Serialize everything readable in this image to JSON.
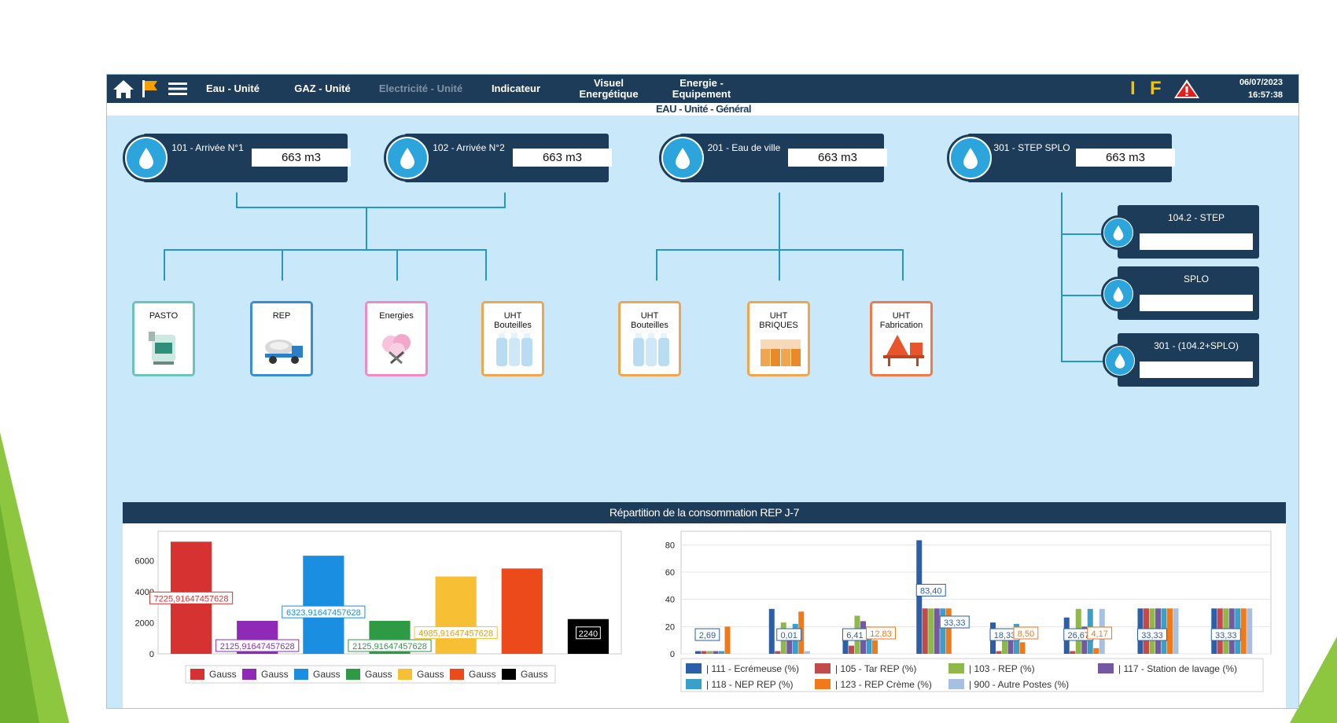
{
  "topbar": {
    "nav": [
      {
        "label": "Eau - Unité",
        "enabled": true
      },
      {
        "label": "GAZ - Unité",
        "enabled": true
      },
      {
        "label": "Electricité - Unité",
        "enabled": false
      },
      {
        "label": "Indicateur",
        "enabled": true
      },
      {
        "label": "Visuel\nEnergétique",
        "enabled": true
      },
      {
        "label": "Energie -\nEquipement",
        "enabled": true
      }
    ],
    "icons": [
      "home-icon",
      "flag-icon",
      "menu-icon",
      "warning-icon"
    ],
    "indicator_i": "I",
    "indicator_f": "F",
    "date": "06/07/2023",
    "time": "16:57:38"
  },
  "page_title": "EAU - Unité - Général",
  "meters": [
    {
      "label": "101 - Arrivée\nN°1",
      "value": "663 m3"
    },
    {
      "label": "102 - Arrivée\nN°2",
      "value": "663 m3"
    },
    {
      "label": "201 - Eau de\nville",
      "value": "663 m3"
    },
    {
      "label": "301 - STEP\nSPLO",
      "value": "663 m3"
    }
  ],
  "sub_meters": [
    {
      "label": "104.2 - STEP",
      "value": ""
    },
    {
      "label": "SPLO",
      "value": ""
    },
    {
      "label": "301 - (104.2+SPLO)",
      "value": ""
    }
  ],
  "units": [
    {
      "label": "PASTO",
      "border": "#6cc4b8",
      "icon": "pasteurizer-icon"
    },
    {
      "label": "REP",
      "border": "#3a8ed0",
      "icon": "tanker-truck-icon"
    },
    {
      "label": "Energies",
      "border": "#f08bbf",
      "icon": "energy-tools-icon"
    },
    {
      "label": "UHT\nBouteilles",
      "border": "#f0a650",
      "icon": "milk-bottles-icon"
    },
    {
      "label": "UHT\nBouteilles",
      "border": "#f0a650",
      "icon": "milk-bottles-icon"
    },
    {
      "label": "UHT\nBRIQUES",
      "border": "#f0a650",
      "icon": "milk-cartons-icon"
    },
    {
      "label": "UHT\nFabrication",
      "border": "#f07a4a",
      "icon": "factory-tanks-icon"
    }
  ],
  "chart_section_title": "Répartition de la consommation REP J-7",
  "chart_data": [
    {
      "type": "bar",
      "yticks": [
        0,
        2000,
        4000,
        6000
      ],
      "ylim": [
        0,
        7900
      ],
      "bars": [
        {
          "value": 7225.91647457628,
          "label": "7225,91647457628",
          "color": "#d73232"
        },
        {
          "value": 2125.91647457628,
          "label": "2125,91647457628",
          "color": "#8e2ab5"
        },
        {
          "value": 6323.91647457628,
          "label": "6323,91647457628",
          "color": "#1a8ee0"
        },
        {
          "value": 2125.91647457628,
          "label": "2125,91647457628",
          "color": "#2e9a44"
        },
        {
          "value": 4985.91647457628,
          "label": "4985,91647457628",
          "color": "#f7c034"
        },
        {
          "value": 5500,
          "label": "",
          "color": "#ec4a1a"
        },
        {
          "value": 2240,
          "label": "2240",
          "color": "#000000"
        }
      ],
      "legend": [
        {
          "name": "Gauss",
          "color": "#d73232"
        },
        {
          "name": "Gauss",
          "color": "#8e2ab5"
        },
        {
          "name": "Gauss",
          "color": "#1a8ee0"
        },
        {
          "name": "Gauss",
          "color": "#2e9a44"
        },
        {
          "name": "Gauss",
          "color": "#f7c034"
        },
        {
          "name": "Gauss",
          "color": "#ec4a1a"
        },
        {
          "name": "Gauss",
          "color": "#000000"
        }
      ]
    },
    {
      "type": "bar",
      "yticks": [
        0,
        20,
        40,
        60,
        80
      ],
      "ylim": [
        0,
        90
      ],
      "series": [
        {
          "name": "| 111 - Ecrémeuse (%)",
          "color": "#2b5fa8"
        },
        {
          "name": "| 105 - Tar REP (%)",
          "color": "#c24a4a"
        },
        {
          "name": "| 103 - REP (%)",
          "color": "#8fb84a"
        },
        {
          "name": "| 117 - Station de lavage (%)",
          "color": "#7558a4"
        },
        {
          "name": "| 118 - NEP REP (%)",
          "color": "#3aa0c8"
        },
        {
          "name": "| 123 - REP Crème (%)",
          "color": "#f07a1a"
        },
        {
          "name": "| 900 - Autre Postes (%)",
          "color": "#a8c0e0"
        }
      ],
      "groups": [
        {
          "values": [
            2,
            2,
            2,
            2,
            2,
            20,
            0
          ],
          "annotation": "2,69"
        },
        {
          "values": [
            33,
            2,
            23,
            18,
            22,
            31,
            2
          ],
          "annotation": "0,01"
        },
        {
          "values": [
            17,
            6,
            28,
            24,
            20,
            10,
            0
          ],
          "annotation": "6,41",
          "annotation2": "12,83"
        },
        {
          "values": [
            83.4,
            33.33,
            33.33,
            33.33,
            33.33,
            33.33,
            0
          ],
          "annotation": "83,40",
          "annotation2": "33,33"
        },
        {
          "values": [
            23,
            2,
            18,
            14,
            22,
            8.5,
            0
          ],
          "annotation": "18,33",
          "annotation2": "8,50"
        },
        {
          "values": [
            26.67,
            2,
            33,
            20,
            33,
            4.17,
            33
          ],
          "annotation": "26,67",
          "annotation2": "4,17"
        },
        {
          "values": [
            33.33,
            33.33,
            33.33,
            33.33,
            33.33,
            33.33,
            33.33
          ],
          "annotation": "33,33"
        },
        {
          "values": [
            33.33,
            33.33,
            33.33,
            33.33,
            33.33,
            33.33,
            33.33
          ],
          "annotation": "33,33"
        }
      ]
    }
  ]
}
